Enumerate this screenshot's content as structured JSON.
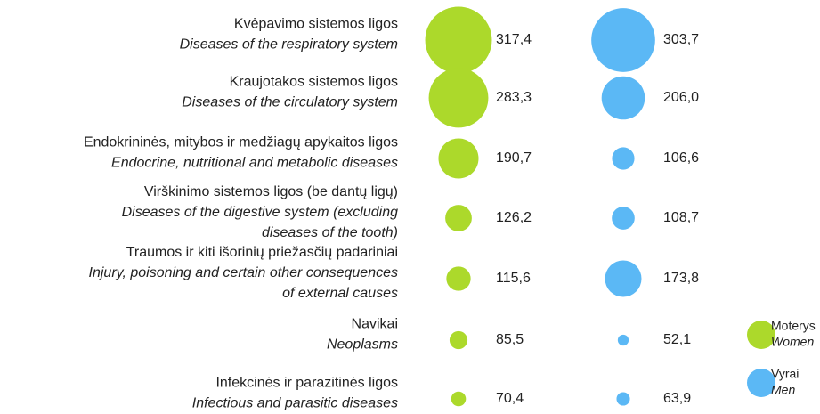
{
  "chart_data": {
    "type": "bubble",
    "categories": [
      {
        "name": "Kvėpavimo sistemos ligos",
        "translation": [
          "Diseases of the respiratory system"
        ]
      },
      {
        "name": "Kraujotakos sistemos ligos",
        "translation": [
          "Diseases of the circulatory system"
        ]
      },
      {
        "name": "Endokrininės, mitybos ir medžiagų apykaitos ligos",
        "translation": [
          "Endocrine, nutritional and metabolic diseases"
        ]
      },
      {
        "name": "Virškinimo sistemos ligos (be dantų ligų)",
        "translation": [
          "Diseases of the digestive system (excluding",
          "diseases of the tooth)"
        ]
      },
      {
        "name": "Traumos ir kiti išorinių priežasčių padariniai",
        "translation": [
          "Injury, poisoning and certain other consequences",
          "of external causes"
        ]
      },
      {
        "name": "Navikai",
        "translation": [
          "Neoplasms"
        ]
      },
      {
        "name": "Infekcinės ir parazitinės ligos",
        "translation": [
          "Infectious and parasitic diseases"
        ]
      }
    ],
    "series": [
      {
        "name": "Moterys",
        "translation": "Women",
        "color": "#acd92b",
        "values": [
          317.4,
          283.3,
          190.7,
          126.2,
          115.6,
          85.5,
          70.4
        ],
        "value_labels": [
          "317,4",
          "283,3",
          "190,7",
          "126,2",
          "115,6",
          "85,5",
          "70,4"
        ]
      },
      {
        "name": "Vyrai",
        "translation": "Men",
        "color": "#5bb8f5",
        "values": [
          303.7,
          206.0,
          106.6,
          108.7,
          173.8,
          52.1,
          63.9
        ],
        "value_labels": [
          "303,7",
          "206,0",
          "106,6",
          "108,7",
          "173,8",
          "52,1",
          "63,9"
        ]
      }
    ],
    "legend": "right"
  }
}
